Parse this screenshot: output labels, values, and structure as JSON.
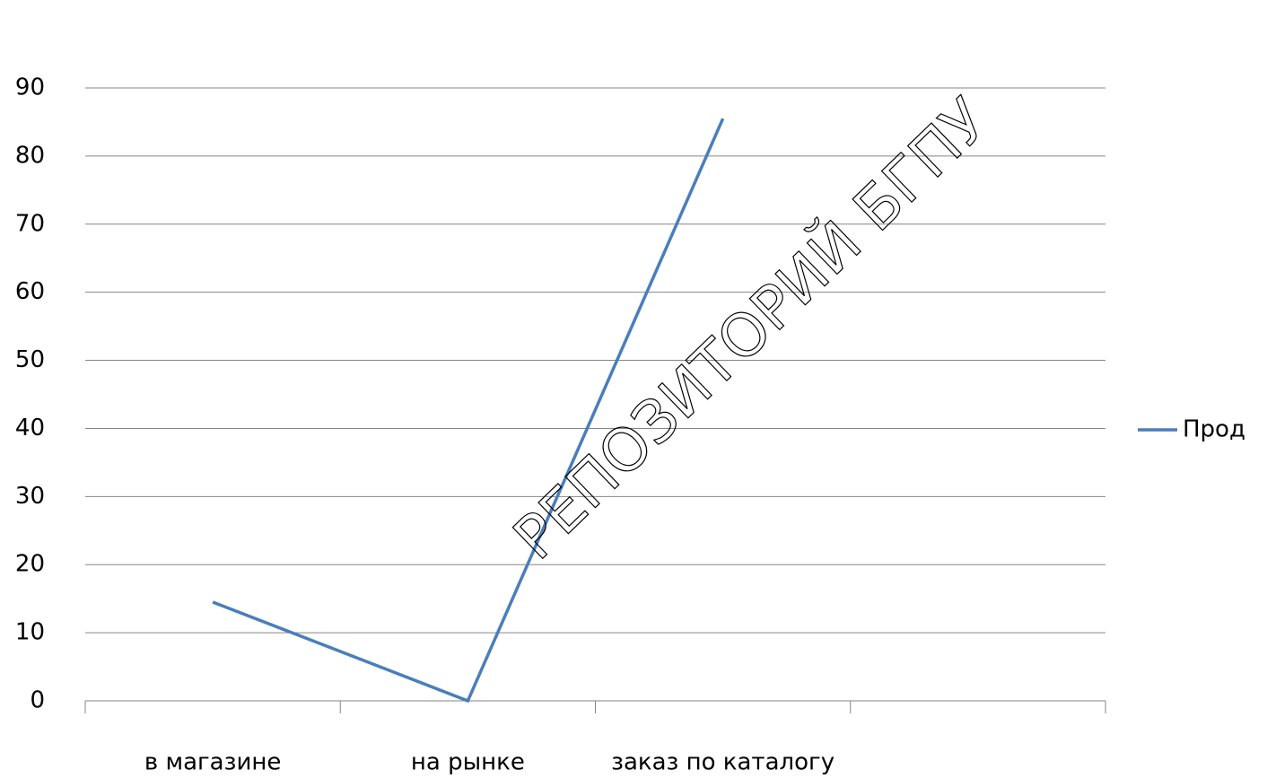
{
  "chart_data": {
    "type": "line",
    "categories": [
      "в магазине",
      "на рынке",
      "заказ по каталогу",
      null
    ],
    "series": [
      {
        "name": "Прод",
        "color": "#4a7ebb",
        "values": [
          14.5,
          0,
          85.5,
          null
        ]
      }
    ],
    "ylim": [
      0,
      90
    ],
    "yticks": [
      0,
      10,
      20,
      30,
      40,
      50,
      60,
      70,
      80,
      90
    ],
    "grid": true,
    "legend": "right",
    "watermark": "РЕПОЗИТОРИЙ БГПУ"
  }
}
